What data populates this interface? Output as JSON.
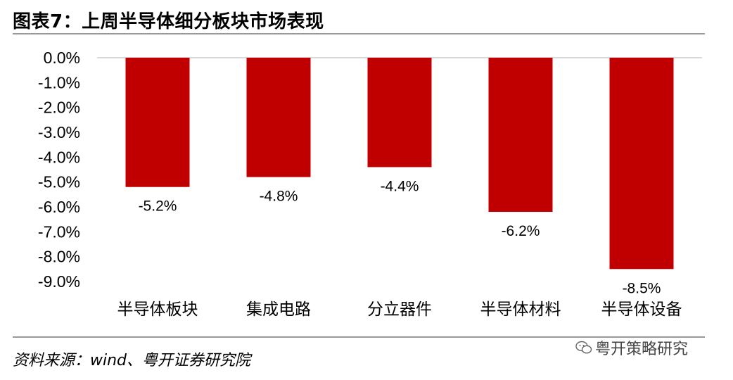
{
  "header": {
    "title": "图表7：上周半导体细分板块市场表现"
  },
  "footer": {
    "source": "资料来源：wind、粤开证券研究院"
  },
  "watermark": {
    "text": "粤开策略研究",
    "icon": "wechat-icon"
  },
  "colors": {
    "bar": "#C00000",
    "axis_line": "#D9D9D9",
    "rule": "#999999"
  },
  "chart_data": {
    "type": "bar",
    "categories": [
      "半导体板块",
      "集成电路",
      "分立器件",
      "半导体材料",
      "半导体设备"
    ],
    "values": [
      -5.2,
      -4.8,
      -4.4,
      -6.2,
      -8.5
    ],
    "data_labels": [
      "-5.2%",
      "-4.8%",
      "-4.4%",
      "-6.2%",
      "-8.5%"
    ],
    "title": "",
    "xlabel": "",
    "ylabel": "",
    "ylim": [
      -9.0,
      0.0
    ],
    "yticks": [
      0.0,
      -1.0,
      -2.0,
      -3.0,
      -4.0,
      -5.0,
      -6.0,
      -7.0,
      -8.0,
      -9.0
    ],
    "ytick_labels": [
      "0.0%",
      "-1.0%",
      "-2.0%",
      "-3.0%",
      "-4.0%",
      "-5.0%",
      "-6.0%",
      "-7.0%",
      "-8.0%",
      "-9.0%"
    ],
    "grid": false,
    "legend": "none"
  }
}
